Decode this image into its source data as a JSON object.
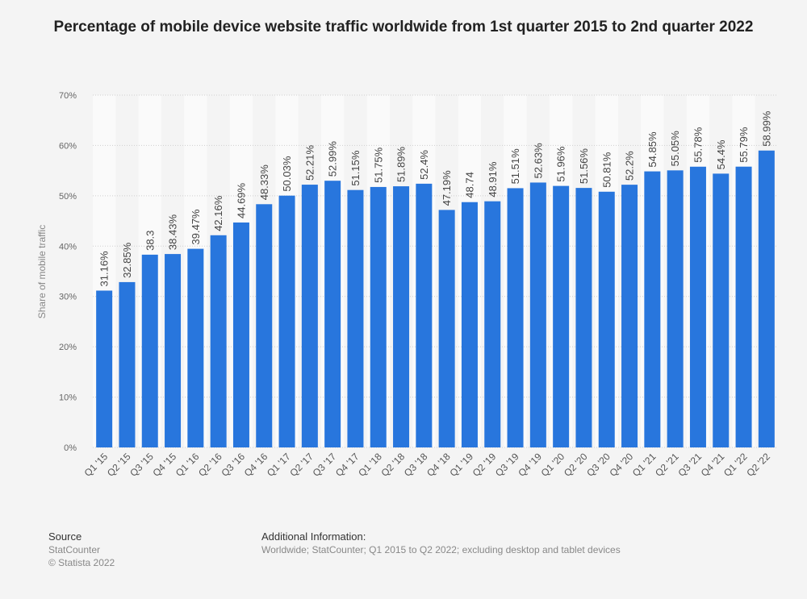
{
  "chart_data": {
    "type": "bar",
    "title": "Percentage of mobile device website traffic worldwide from 1st quarter 2015 to 2nd quarter 2022",
    "xlabel": "",
    "ylabel": "Share of mobile traffic",
    "ylim": [
      0,
      70
    ],
    "yticks": [
      "0%",
      "10%",
      "20%",
      "30%",
      "40%",
      "50%",
      "60%",
      "70%"
    ],
    "grid": true,
    "bar_color": "#2876dd",
    "categories": [
      "Q1 '15",
      "Q2 '15",
      "Q3 '15",
      "Q4 '15",
      "Q1 '16",
      "Q2 '16",
      "Q3 '16",
      "Q4 '16",
      "Q1 '17",
      "Q2 '17",
      "Q3 '17",
      "Q4 '17",
      "Q1 '18",
      "Q2 '18",
      "Q3 '18",
      "Q4 '18",
      "Q1 '19",
      "Q2 '19",
      "Q3 '19",
      "Q4 '19",
      "Q1 '20",
      "Q2 '20",
      "Q3 '20",
      "Q4 '20",
      "Q1 '21",
      "Q2 '21",
      "Q3 '21",
      "Q4 '21",
      "Q1 '22",
      "Q2 '22"
    ],
    "values": [
      31.16,
      32.85,
      38.3,
      38.43,
      39.47,
      42.16,
      44.69,
      48.33,
      50.03,
      52.21,
      52.99,
      51.15,
      51.75,
      51.89,
      52.4,
      47.19,
      48.74,
      48.91,
      51.51,
      52.63,
      51.96,
      51.56,
      50.81,
      52.2,
      54.85,
      55.05,
      55.78,
      54.4,
      55.79,
      58.99
    ],
    "labels": [
      "31.16%",
      "32.85%",
      "38.3",
      "38.43%",
      "39.47%",
      "42.16%",
      "44.69%",
      "48.33%",
      "50.03%",
      "52.21%",
      "52.99%",
      "51.15%",
      "51.75%",
      "51.89%",
      "52.4%",
      "47.19%",
      "48.74",
      "48.91%",
      "51.51%",
      "52.63%",
      "51.96%",
      "51.56%",
      "50.81%",
      "52.2%",
      "54.85%",
      "55.05%",
      "55.78%",
      "54.4%",
      "55.79%",
      "58.99%"
    ]
  },
  "footer": {
    "source_heading": "Source",
    "source": "StatCounter",
    "copyright": "© Statista 2022",
    "info_heading": "Additional Information:",
    "info": "Worldwide; StatCounter; Q1 2015 to Q2 2022; excluding desktop and tablet devices"
  }
}
